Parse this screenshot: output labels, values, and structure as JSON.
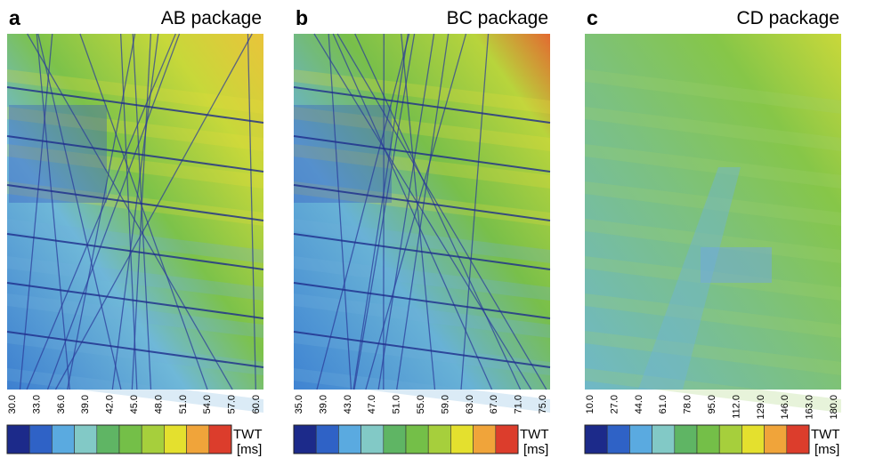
{
  "panels": [
    {
      "letter": "a",
      "title": "AB package",
      "ticks": [
        "30.0",
        "33.0",
        "36.0",
        "39.0",
        "42.0",
        "45.0",
        "48.0",
        "51.0",
        "54.0",
        "57.0",
        "60.0"
      ],
      "unit_name": "TWT",
      "unit": "[ms]"
    },
    {
      "letter": "b",
      "title": "BC package",
      "ticks": [
        "35.0",
        "39.0",
        "43.0",
        "47.0",
        "51.0",
        "55.0",
        "59.0",
        "63.0",
        "67.0",
        "71.0",
        "75.0"
      ],
      "unit_name": "TWT",
      "unit": "[ms]"
    },
    {
      "letter": "c",
      "title": "CD package",
      "ticks": [
        "10.0",
        "27.0",
        "44.0",
        "61.0",
        "78.0",
        "95.0",
        "112.0",
        "129.0",
        "146.0",
        "163.0",
        "180.0"
      ],
      "unit_name": "TWT",
      "unit": "[ms]"
    }
  ]
}
